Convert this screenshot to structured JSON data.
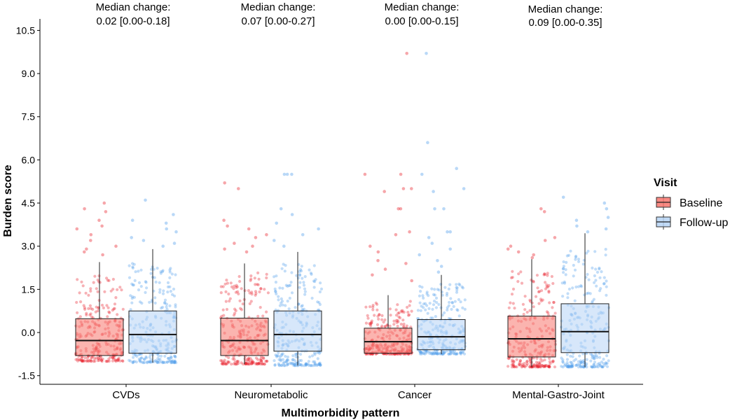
{
  "chart_data": {
    "type": "box",
    "title": "",
    "xlabel": "Multimorbidity pattern",
    "ylabel": "Burden score",
    "ylim": [
      -1.8,
      10.9
    ],
    "yticks": [
      "-1.5",
      "0.0",
      "1.5",
      "3.0",
      "4.5",
      "6.0",
      "7.5",
      "9.0",
      "10.5"
    ],
    "categories": [
      "CVDs",
      "Neurometabolic",
      "Cancer",
      "Mental-Gastro-Joint"
    ],
    "annotations": [
      {
        "line1": "Median change:",
        "line2": "0.02 [0.00-0.18]"
      },
      {
        "line1": "Median change:",
        "line2": "0.07 [0.00-0.27]"
      },
      {
        "line1": "Median change:",
        "line2": "0.00 [0.00-0.15]"
      },
      {
        "line1": "Median change:",
        "line2": "0.09 [0.00-0.35]"
      }
    ],
    "legend": {
      "title": "Visit",
      "position": "right"
    },
    "series": [
      {
        "name": "Baseline",
        "color": "#F8766D",
        "point_color": "#E8202A",
        "boxes": [
          {
            "lower_whisker": -0.85,
            "q1": -0.8,
            "median": -0.28,
            "q3": 0.48,
            "upper_whisker": 2.45
          },
          {
            "lower_whisker": -1.1,
            "q1": -0.8,
            "median": -0.28,
            "q3": 0.5,
            "upper_whisker": 2.4
          },
          {
            "lower_whisker": -0.75,
            "q1": -0.72,
            "median": -0.32,
            "q3": 0.15,
            "upper_whisker": 1.3
          },
          {
            "lower_whisker": -1.2,
            "q1": -0.85,
            "median": -0.22,
            "q3": 0.57,
            "upper_whisker": 2.55
          }
        ],
        "point_range": [
          [
            -1.0,
            2.0
          ],
          [
            -1.1,
            2.1
          ],
          [
            -0.75,
            1.1
          ],
          [
            -1.2,
            2.2
          ]
        ],
        "outliers": [
          [
            4.5,
            4.3,
            4.2,
            3.9,
            3.7,
            3.6,
            3.4,
            3.2,
            3.0,
            2.9,
            2.8,
            2.7
          ],
          [
            5.2,
            5.0,
            3.9,
            3.7,
            3.6,
            3.4,
            3.3,
            3.1,
            3.0,
            2.9,
            2.8
          ],
          [
            9.7,
            5.5,
            5.5,
            5.0,
            5.0,
            4.9,
            4.3,
            4.3,
            3.5,
            3.4,
            3.0,
            2.8,
            2.5,
            2.4,
            2.2,
            2.0,
            1.8
          ],
          [
            4.3,
            4.2,
            3.3,
            3.2,
            3.0,
            2.9,
            2.8,
            2.7,
            2.6
          ]
        ]
      },
      {
        "name": "Follow-up",
        "color": "#B6D3F5",
        "point_color": "#4F9DEB",
        "boxes": [
          {
            "lower_whisker": -1.05,
            "q1": -0.72,
            "median": -0.07,
            "q3": 0.75,
            "upper_whisker": 2.9
          },
          {
            "lower_whisker": -1.15,
            "q1": -0.65,
            "median": -0.07,
            "q3": 0.75,
            "upper_whisker": 2.8
          },
          {
            "lower_whisker": -0.75,
            "q1": -0.6,
            "median": -0.15,
            "q3": 0.45,
            "upper_whisker": 2.0
          },
          {
            "lower_whisker": -1.2,
            "q1": -0.7,
            "median": 0.03,
            "q3": 1.0,
            "upper_whisker": 3.45
          }
        ],
        "point_range": [
          [
            -1.05,
            2.4
          ],
          [
            -1.15,
            2.4
          ],
          [
            -0.75,
            1.7
          ],
          [
            -1.2,
            2.9
          ]
        ],
        "outliers": [
          [
            4.6,
            4.1,
            3.9,
            3.8,
            3.6,
            3.5,
            3.3,
            3.2,
            3.1,
            3.0
          ],
          [
            5.5,
            5.5,
            5.5,
            4.3,
            4.1,
            3.8,
            3.6,
            3.4,
            3.2,
            3.0
          ],
          [
            9.7,
            6.6,
            5.7,
            5.5,
            5.0,
            4.9,
            4.3,
            4.3,
            3.5,
            3.5,
            3.3,
            3.1,
            2.9,
            2.7,
            2.5,
            2.3,
            2.1
          ],
          [
            4.7,
            4.5,
            4.3,
            4.0,
            3.9,
            3.7,
            3.6,
            3.5
          ]
        ]
      }
    ]
  }
}
